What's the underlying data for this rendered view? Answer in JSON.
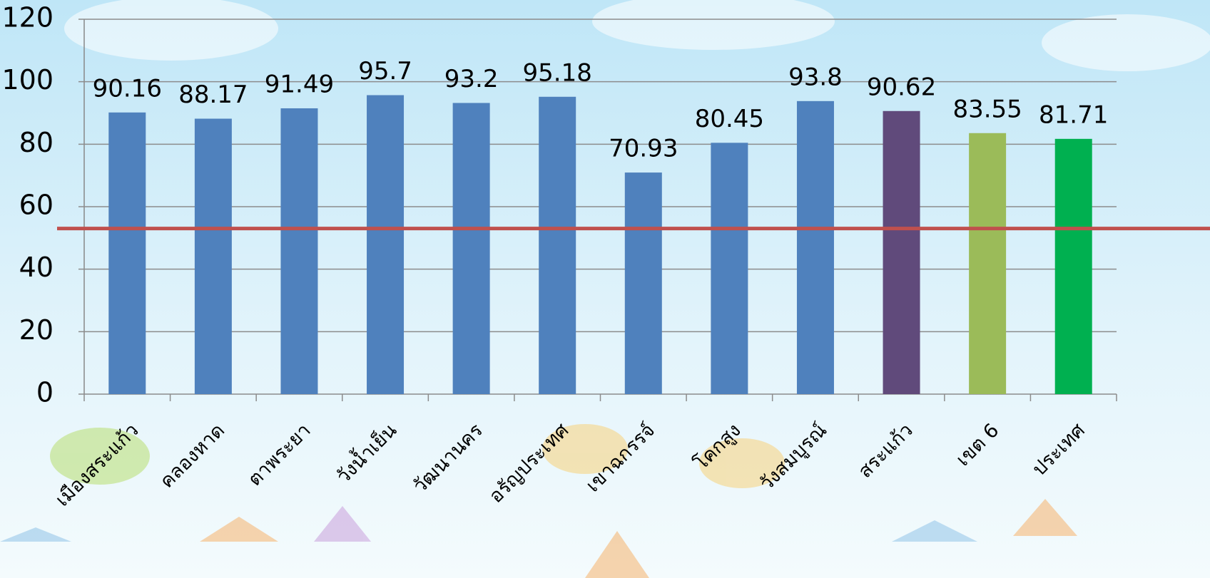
{
  "chart_data": {
    "type": "bar",
    "categories": [
      "เมืองสระแก้ว",
      "คลองหาด",
      "ตาพระยา",
      "วังน้ำเย็น",
      "วัฒนานคร",
      "อรัญประเทศ",
      "เขาฉกรรจ์",
      "โคกสูง",
      "วังสมบูรณ์",
      "สระแก้ว",
      "เขต 6",
      "ประเทศ"
    ],
    "values": [
      90.16,
      88.17,
      91.49,
      95.7,
      93.2,
      95.18,
      70.93,
      80.45,
      93.8,
      90.62,
      83.55,
      81.71
    ],
    "colors": [
      "#4f81bd",
      "#4f81bd",
      "#4f81bd",
      "#4f81bd",
      "#4f81bd",
      "#4f81bd",
      "#4f81bd",
      "#4f81bd",
      "#4f81bd",
      "#604a7b",
      "#9bbb59",
      "#00b050"
    ],
    "ylim": [
      0,
      120
    ],
    "yticks": [
      0,
      20,
      40,
      60,
      80,
      100,
      120
    ],
    "grid": true,
    "reference_line": {
      "value": 53,
      "color": "#c0504d"
    }
  }
}
